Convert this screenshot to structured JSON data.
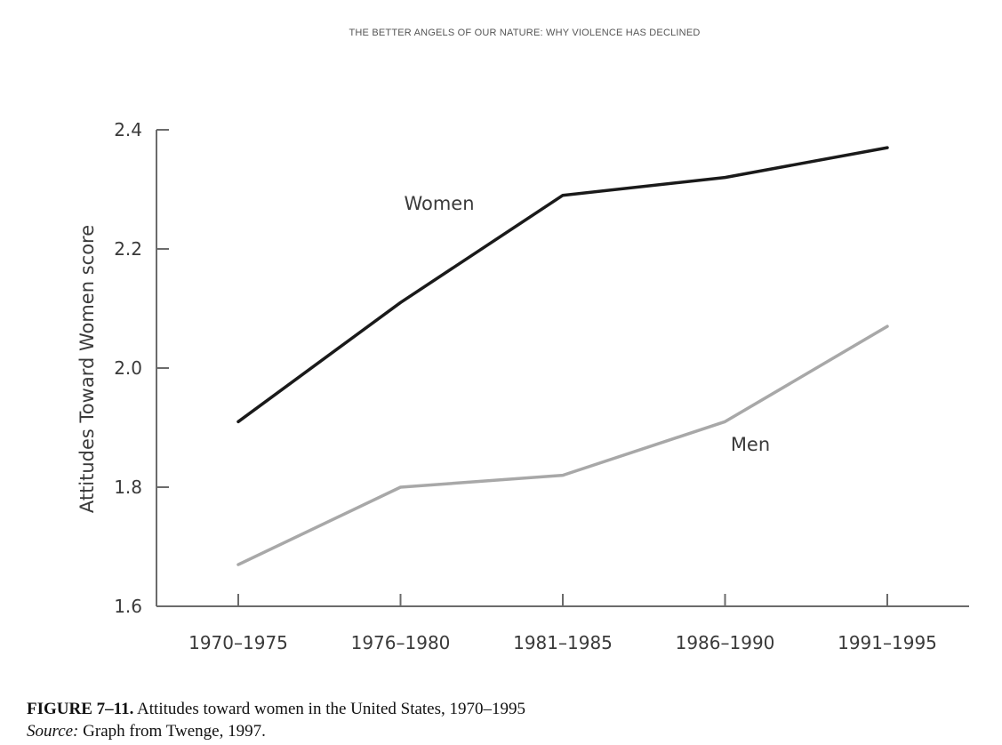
{
  "page": {
    "running_head": "THE BETTER ANGELS OF OUR NATURE: WHY VIOLENCE HAS DECLINED"
  },
  "caption": {
    "figure_number": "FIGURE 7–11.",
    "text": " Attitudes toward women in the United States, 1970–1995",
    "source_label": "Source:",
    "source_text": " Graph from Twenge, 1997."
  },
  "chart_data": {
    "type": "line",
    "title": "",
    "xlabel": "",
    "ylabel": "Attitudes Toward Women score",
    "categories": [
      "1970–1975",
      "1976–1980",
      "1981–1985",
      "1986–1990",
      "1991–1995"
    ],
    "ylim": [
      1.6,
      2.4
    ],
    "yticks": [
      1.6,
      1.8,
      2.0,
      2.2,
      2.4
    ],
    "ytick_labels": [
      "1.6",
      "1.8",
      "2.0",
      "2.2",
      "2.4"
    ],
    "grid": false,
    "legend": "none (series labelled directly on the plot)",
    "series": [
      {
        "name": "Women",
        "values": [
          1.91,
          2.11,
          2.29,
          2.32,
          2.37
        ],
        "color": "#1a1a1a"
      },
      {
        "name": "Men",
        "values": [
          1.67,
          1.8,
          1.82,
          1.91,
          2.07
        ],
        "color": "#a8a8a8"
      }
    ]
  }
}
